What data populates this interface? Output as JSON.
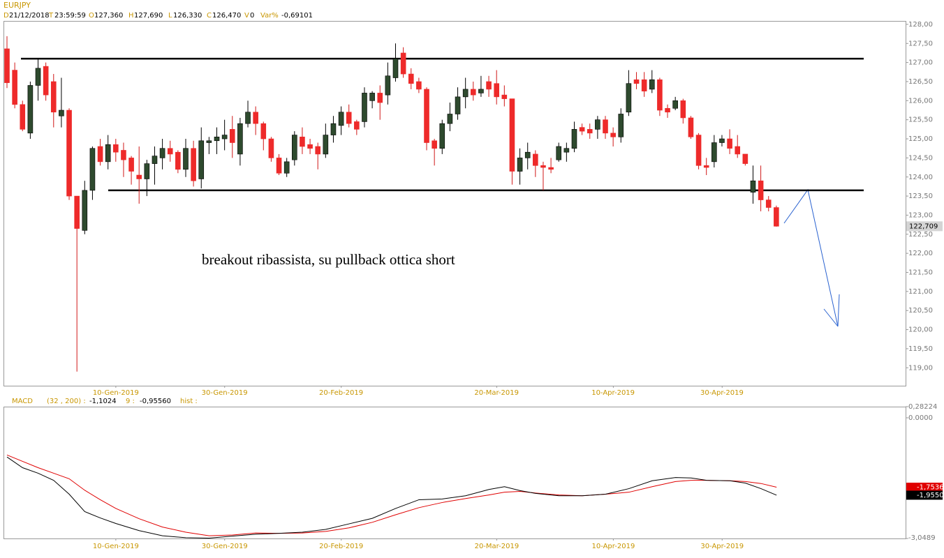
{
  "header": {
    "symbol": "EURJPY",
    "items": [
      {
        "key": "D",
        "value": "21/12/2018"
      },
      {
        "key": "T",
        "value": "23:59:59"
      },
      {
        "key": "O",
        "value": "127,360"
      },
      {
        "key": "H",
        "value": "127,690"
      },
      {
        "key": "L",
        "value": "126,330"
      },
      {
        "key": "C",
        "value": "126,470"
      },
      {
        "key": "V",
        "value": "0"
      },
      {
        "key": "Var%",
        "value": "-0,69101"
      }
    ]
  },
  "chart_data": [
    {
      "type": "candlestick",
      "annotation": "breakout ribassista, su pullback ottica short",
      "categories": [
        null,
        null,
        null,
        null,
        null,
        null,
        null,
        null,
        null,
        null,
        null,
        null,
        null,
        null,
        "10-Gen-2019",
        null,
        null,
        null,
        null,
        null,
        null,
        null,
        null,
        null,
        null,
        null,
        null,
        null,
        "30-Gen-2019",
        null,
        null,
        null,
        null,
        null,
        null,
        null,
        null,
        null,
        null,
        null,
        null,
        null,
        null,
        "20-Feb-2019",
        null,
        null,
        null,
        null,
        null,
        null,
        null,
        null,
        null,
        null,
        null,
        null,
        null,
        null,
        null,
        null,
        null,
        null,
        null,
        "20-Mar-2019",
        null,
        null,
        null,
        null,
        null,
        null,
        null,
        null,
        null,
        null,
        null,
        null,
        null,
        null,
        "10-Apr-2019",
        null,
        null,
        null,
        null,
        null,
        null,
        null,
        null,
        null,
        null,
        null,
        null,
        null,
        "30-Apr-2019",
        null,
        null,
        null,
        null,
        null,
        null,
        null
      ],
      "open": [
        127.36,
        126.8,
        125.9,
        125.15,
        126.4,
        126.9,
        126.5,
        125.6,
        125.75,
        123.5,
        122.6,
        123.65,
        124.8,
        124.4,
        124.85,
        124.7,
        124.5,
        124.05,
        123.95,
        124.35,
        124.5,
        124.75,
        124.65,
        124.2,
        124.75,
        123.95,
        124.9,
        124.95,
        125.0,
        125.25,
        124.6,
        125.4,
        125.7,
        125.4,
        125.0,
        124.5,
        124.1,
        124.45,
        125.05,
        124.85,
        124.8,
        124.6,
        125.1,
        125.35,
        125.7,
        125.45,
        125.45,
        126.0,
        126.2,
        126.15,
        126.6,
        127.25,
        126.7,
        126.5,
        126.3,
        124.95,
        124.75,
        125.4,
        125.65,
        126.1,
        126.3,
        126.2,
        126.5,
        126.45,
        126.15,
        126.05,
        124.15,
        124.5,
        124.6,
        124.3,
        124.25,
        124.45,
        124.65,
        124.75,
        125.3,
        125.25,
        125.25,
        125.5,
        125.15,
        125.05,
        125.7,
        126.55,
        126.55,
        126.3,
        126.55,
        125.8,
        125.8,
        126.0,
        125.55,
        125.1,
        124.3,
        124.4,
        124.9,
        125.0,
        124.8,
        124.6,
        123.6,
        123.9,
        123.4,
        123.2
      ],
      "high": [
        127.69,
        127.0,
        126.0,
        126.5,
        127.1,
        127.0,
        126.7,
        126.6,
        125.8,
        123.5,
        123.9,
        124.8,
        125.0,
        125.1,
        125.0,
        124.9,
        124.55,
        124.8,
        124.45,
        124.8,
        125.0,
        124.95,
        124.7,
        125.0,
        124.95,
        125.3,
        125.05,
        125.3,
        125.5,
        125.6,
        125.55,
        126.0,
        125.85,
        125.45,
        125.05,
        124.6,
        124.5,
        125.2,
        125.3,
        125.0,
        124.9,
        125.4,
        125.6,
        125.85,
        125.9,
        125.5,
        126.35,
        126.25,
        126.4,
        127.0,
        127.5,
        127.4,
        126.85,
        126.6,
        126.35,
        125.0,
        125.5,
        125.95,
        126.35,
        126.6,
        126.5,
        126.65,
        126.65,
        126.8,
        126.4,
        126.05,
        124.75,
        124.9,
        124.7,
        124.4,
        124.5,
        124.9,
        124.9,
        125.45,
        125.4,
        125.4,
        125.6,
        125.6,
        125.3,
        125.8,
        126.8,
        126.75,
        126.75,
        126.8,
        126.6,
        125.9,
        126.1,
        126.05,
        125.6,
        125.15,
        124.5,
        125.1,
        125.1,
        125.25,
        125.1,
        124.6,
        124.3,
        124.3,
        123.5,
        123.25
      ],
      "low": [
        126.33,
        125.8,
        125.2,
        125.0,
        126.0,
        126.0,
        125.3,
        125.3,
        123.4,
        118.9,
        122.5,
        123.4,
        124.3,
        124.2,
        124.4,
        124.0,
        123.8,
        123.3,
        123.5,
        123.8,
        124.2,
        124.4,
        124.1,
        124.0,
        123.75,
        123.7,
        124.6,
        124.6,
        124.7,
        124.5,
        124.3,
        125.3,
        125.1,
        124.7,
        124.4,
        124.05,
        124.0,
        124.3,
        124.6,
        124.6,
        124.2,
        124.5,
        124.9,
        125.1,
        125.3,
        125.1,
        125.3,
        125.8,
        125.5,
        125.9,
        126.5,
        126.6,
        126.3,
        126.2,
        124.7,
        124.3,
        124.6,
        125.2,
        125.5,
        125.8,
        126.0,
        126.1,
        126.1,
        125.9,
        125.85,
        123.8,
        123.8,
        124.2,
        124.0,
        123.65,
        124.1,
        124.4,
        124.4,
        124.65,
        125.1,
        125.0,
        125.0,
        125.0,
        124.8,
        124.9,
        125.6,
        126.3,
        126.1,
        126.2,
        125.6,
        125.55,
        125.75,
        125.4,
        125.0,
        124.2,
        124.05,
        124.25,
        124.8,
        124.6,
        124.5,
        124.3,
        123.3,
        123.1,
        123.1,
        122.7
      ],
      "close": [
        126.47,
        125.9,
        125.25,
        126.4,
        126.85,
        126.15,
        125.7,
        125.75,
        123.5,
        122.65,
        123.65,
        124.75,
        124.4,
        124.85,
        124.65,
        124.45,
        124.15,
        123.95,
        124.35,
        124.55,
        124.75,
        124.6,
        124.2,
        124.75,
        123.9,
        124.95,
        124.95,
        125.05,
        125.1,
        124.9,
        125.4,
        125.7,
        125.4,
        125.0,
        124.5,
        124.1,
        124.4,
        125.1,
        124.8,
        124.75,
        124.6,
        125.1,
        125.4,
        125.7,
        125.4,
        125.25,
        126.2,
        126.2,
        125.95,
        126.65,
        127.1,
        126.7,
        126.45,
        126.3,
        124.9,
        124.75,
        125.4,
        125.65,
        126.1,
        126.3,
        126.15,
        126.3,
        126.3,
        126.1,
        126.05,
        124.15,
        124.5,
        124.65,
        124.3,
        124.25,
        124.2,
        124.8,
        124.75,
        125.25,
        125.2,
        125.15,
        125.5,
        125.15,
        125.05,
        125.65,
        126.45,
        126.45,
        126.25,
        126.55,
        125.75,
        125.7,
        126.0,
        125.55,
        125.05,
        124.3,
        124.25,
        124.9,
        125.0,
        124.75,
        124.6,
        124.35,
        123.9,
        123.4,
        123.2,
        122.709
      ],
      "last_label": "122,709",
      "levels": [
        127.1,
        123.65
      ],
      "ylim": [
        118.53,
        128.09
      ],
      "yticks": [
        {
          "value": 128,
          "label": "128,00"
        },
        {
          "value": 127.5,
          "label": "127,50"
        },
        {
          "value": 127,
          "label": "127,00"
        },
        {
          "value": 126.5,
          "label": "126,50"
        },
        {
          "value": 126,
          "label": "126,00"
        },
        {
          "value": 125.5,
          "label": "125,50"
        },
        {
          "value": 125,
          "label": "125,00"
        },
        {
          "value": 124.5,
          "label": "124,50"
        },
        {
          "value": 124,
          "label": "124,00"
        },
        {
          "value": 123.5,
          "label": "123,50"
        },
        {
          "value": 123,
          "label": "123,00"
        },
        {
          "value": 122.5,
          "label": "122,50"
        },
        {
          "value": 122,
          "label": "122,00"
        },
        {
          "value": 121.5,
          "label": "121,50"
        },
        {
          "value": 121,
          "label": "121,00"
        },
        {
          "value": 120.5,
          "label": "120,50"
        },
        {
          "value": 120,
          "label": "120,00"
        },
        {
          "value": 119.5,
          "label": "119,50"
        },
        {
          "value": 119,
          "label": "119,00"
        }
      ],
      "up_color": "#2e4a2e",
      "down_color": "#ee2a2a"
    },
    {
      "type": "line",
      "indicator_header": [
        "MACD",
        "(32 , 200) :",
        "-1,1024",
        "9 :",
        "-0,95560",
        "hist :"
      ],
      "x": [
        0,
        2,
        4,
        6,
        8,
        10,
        12,
        14,
        17,
        20,
        23,
        26,
        29,
        32,
        35,
        38,
        41,
        44,
        47,
        50,
        53,
        56,
        59,
        62,
        64,
        66,
        68,
        71,
        74,
        77,
        80,
        83,
        86,
        88,
        90,
        93,
        95,
        97,
        99
      ],
      "series": [
        {
          "color": "#000000",
          "last_label": "-1,9550",
          "values": [
            -0.99,
            -1.26,
            -1.4,
            -1.58,
            -1.93,
            -2.37,
            -2.53,
            -2.67,
            -2.85,
            -2.98,
            -3.03,
            -3.04,
            -2.99,
            -2.94,
            -2.92,
            -2.89,
            -2.82,
            -2.68,
            -2.54,
            -2.29,
            -2.07,
            -2.05,
            -1.97,
            -1.81,
            -1.74,
            -1.84,
            -1.91,
            -1.97,
            -1.97,
            -1.93,
            -1.79,
            -1.59,
            -1.51,
            -1.52,
            -1.58,
            -1.59,
            -1.65,
            -1.79,
            -1.955
          ]
        },
        {
          "color": "#e00000",
          "last_label": "-1,7536",
          "values": [
            -0.94,
            -1.1,
            -1.26,
            -1.4,
            -1.54,
            -1.83,
            -2.07,
            -2.29,
            -2.55,
            -2.76,
            -2.89,
            -2.98,
            -2.96,
            -2.91,
            -2.92,
            -2.91,
            -2.87,
            -2.78,
            -2.64,
            -2.45,
            -2.27,
            -2.14,
            -2.04,
            -1.95,
            -1.88,
            -1.86,
            -1.9,
            -1.95,
            -1.97,
            -1.93,
            -1.88,
            -1.74,
            -1.61,
            -1.58,
            -1.58,
            -1.59,
            -1.61,
            -1.66,
            -1.7536
          ]
        }
      ],
      "xlim": [
        -0.45,
        115.6
      ],
      "xticks": [
        {
          "value": 14,
          "label": "10-Gen-2019"
        },
        {
          "value": 28,
          "label": "30-Gen-2019"
        },
        {
          "value": 43,
          "label": "20-Feb-2019"
        },
        {
          "value": 63,
          "label": "20-Mar-2019"
        },
        {
          "value": 78,
          "label": "10-Apr-2019"
        },
        {
          "value": 92,
          "label": "30-Apr-2019"
        }
      ],
      "ylim": [
        -3.0489,
        0.28224
      ],
      "yticks": [
        {
          "value": 0.28224,
          "label": "0,28224"
        },
        {
          "value": 0,
          "label": "0.0000"
        },
        {
          "value": -3.0489,
          "label": "-3,0489"
        }
      ]
    }
  ]
}
